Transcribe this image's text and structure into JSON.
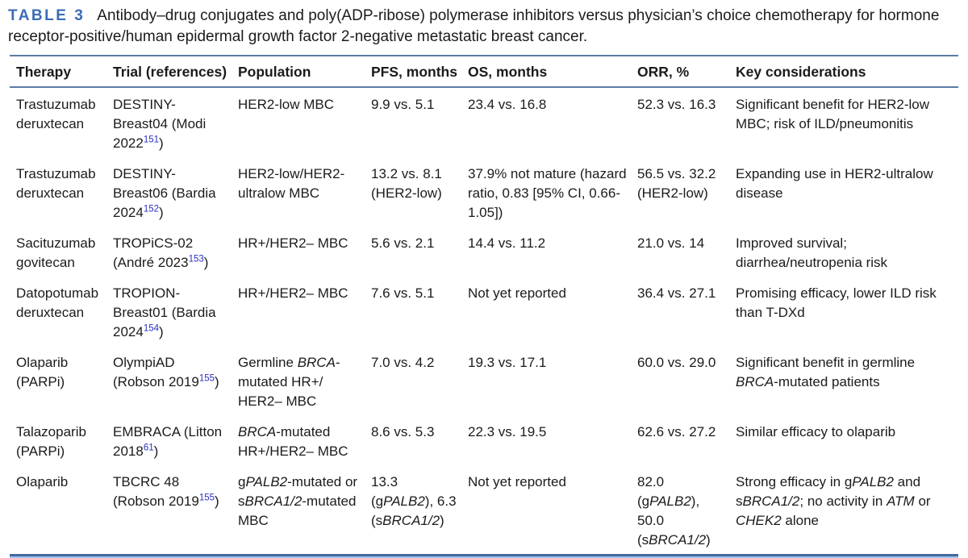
{
  "title": {
    "label": "TABLE 3",
    "text": "Antibody–drug conjugates and poly(ADP-ribose) polymerase inhibitors versus physician’s choice chemotherapy for hormone receptor-positive/human epidermal growth factor 2-negative metastatic breast cancer."
  },
  "colors": {
    "accent_blue": "#3b6cb4",
    "rule_blue": "#5b7ca6",
    "bottom_rule_dark": "#44699e",
    "bottom_rule_light": "#9cc3e8",
    "reference_link_blue": "#2a2fc4",
    "text": "#1b1b1b"
  },
  "table": {
    "columns": [
      "Therapy",
      "Trial (references)",
      "Population",
      "PFS, months",
      "OS, months",
      "ORR, %",
      "Key considerations"
    ],
    "rows": [
      [
        "Trastuzumab deruxtecan",
        "DESTINY-Breast04 (Modi 2022^151^)",
        "HER2-low MBC",
        "9.9 vs. 5.1",
        "23.4 vs. 16.8",
        "52.3 vs. 16.3",
        "Significant benefit for HER2-low MBC; risk of ILD/pneumonitis"
      ],
      [
        "Trastuzumab deruxtecan",
        "DESTINY-Breast06 (Bardia 2024^152^)",
        "HER2-low/HER2-ultralow MBC",
        "13.2 vs. 8.1 (HER2-low)",
        "37.9% not mature (hazard ratio, 0.83 [95% CI, 0.66-1.05])",
        "56.5 vs. 32.2 (HER2-low)",
        "Expanding use in HER2-ultralow disease"
      ],
      [
        "Sacituzumab govitecan",
        "TROPiCS-02 (André 2023^153^)",
        "HR+/HER2– MBC",
        "5.6 vs. 2.1",
        "14.4 vs. 11.2",
        "21.0 vs. 14",
        "Improved survival; diarrhea/neutropenia risk"
      ],
      [
        "Datopotumab deruxtecan",
        "TROPION-Breast01 (Bardia 2024^154^)",
        "HR+/HER2– MBC",
        "7.6 vs. 5.1",
        "Not yet reported",
        "36.4 vs. 27.1",
        "Promising efficacy, lower ILD risk than T-DXd"
      ],
      [
        "Olaparib (PARPi)",
        "OlympiAD (Robson 2019^155^)",
        "Germline _BRCA_-mutated HR+/ HER2– MBC",
        "7.0 vs. 4.2",
        "19.3 vs. 17.1",
        "60.0 vs. 29.0",
        "Significant benefit in germline _BRCA_-mutated patients"
      ],
      [
        "Talazoparib (PARPi)",
        "EMBRACA (Litton 2018^61^)",
        "_BRCA_-mutated HR+/HER2– MBC",
        "8.6 vs. 5.3",
        "22.3 vs. 19.5",
        "62.6 vs. 27.2",
        "Similar efficacy to olaparib"
      ],
      [
        "Olaparib",
        "TBCRC 48 (Robson 2019^155^)",
        "g_PALB2_-mutated or s_BRCA1/2_-mutated MBC",
        "13.3 (g_PALB2_), 6.3 (s_BRCA1/2_)",
        "Not yet reported",
        "82.0 (g_PALB2_), 50.0 (s_BRCA1/2_)",
        "Strong efficacy in g_PALB2_ and s_BRCA1/2_; no activity in _ATM_ or _CHEK2_ alone"
      ]
    ]
  }
}
